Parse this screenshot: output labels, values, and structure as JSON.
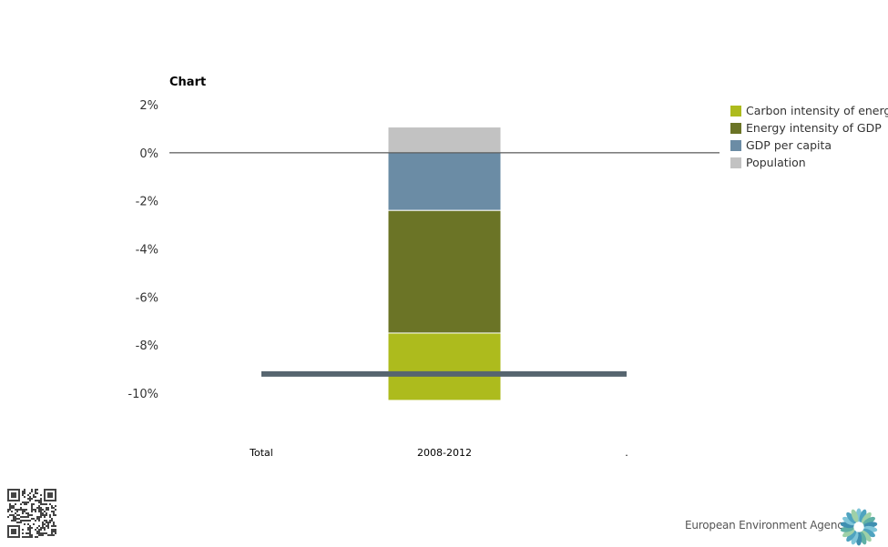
{
  "chart_data": {
    "type": "bar",
    "stacked": true,
    "title": "Chart",
    "xlabel": "",
    "ylabel": "",
    "categories": [
      "Total",
      "2008-2012",
      "."
    ],
    "ylim": [
      -10,
      2
    ],
    "yticks": [
      2,
      0,
      -2,
      -4,
      -6,
      -8,
      -10
    ],
    "ytick_format": "%",
    "series": [
      {
        "name": "Carbon intensity of energy",
        "color": "#adbb1d",
        "values": [
          null,
          -2.8,
          null
        ]
      },
      {
        "name": "Energy intensity of GDP",
        "color": "#6b7426",
        "values": [
          null,
          -5.1,
          null
        ]
      },
      {
        "name": "GDP per capita",
        "color": "#6b8ca5",
        "values": [
          null,
          -2.4,
          null
        ]
      },
      {
        "name": "Population",
        "color": "#c2c2c2",
        "values": [
          null,
          1.07,
          null
        ]
      }
    ],
    "total_line": {
      "color": "#56656f",
      "value": -9.2,
      "from_category": "Total",
      "to_category": "."
    },
    "legend_position": "top-right",
    "grid": false
  },
  "footer": {
    "agency": "European Environment Agency",
    "qr_icon": "qr-code-icon",
    "logo_icon": "eea-flower-logo-icon"
  }
}
